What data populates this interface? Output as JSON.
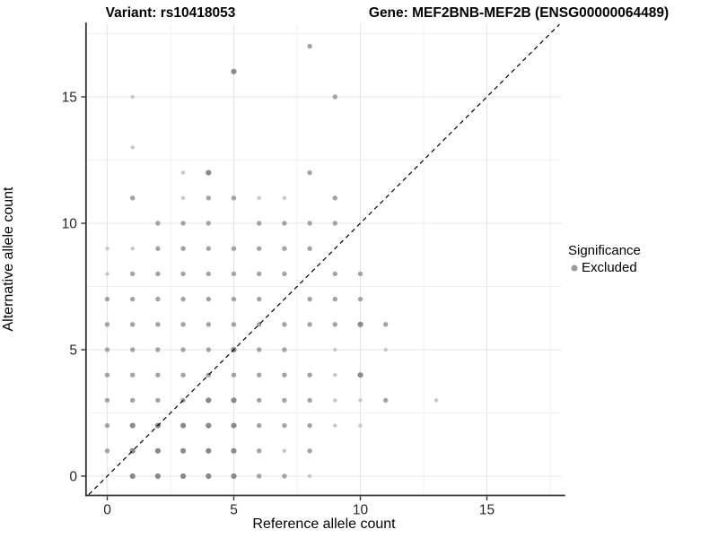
{
  "titles": {
    "variant": "Variant: rs10418053",
    "gene": "Gene: MEF2BNB-MEF2B (ENSG00000064489)"
  },
  "legend": {
    "title": "Significance",
    "entries": [
      {
        "label": "Excluded",
        "color": "#999999"
      }
    ],
    "position": "right"
  },
  "chart_data": {
    "type": "scatter",
    "title_left": "Variant: rs10418053",
    "title_right": "Gene: MEF2BNB-MEF2B (ENSG00000064489)",
    "xlabel": "Reference allele count",
    "ylabel": "Alternative allele count",
    "x_ticks": [
      0,
      5,
      10,
      15
    ],
    "y_ticks": [
      0,
      5,
      10,
      15
    ],
    "x_minor_ticks": [
      2.5,
      7.5,
      12.5,
      17.5
    ],
    "y_minor_ticks": [
      2.5,
      7.5,
      12.5,
      17.5
    ],
    "xlim": [
      -0.8,
      17.95
    ],
    "ylim": [
      -0.73,
      17.87
    ],
    "grid": "major+minor",
    "reference_line": {
      "equation": "y=x",
      "style": "dashed",
      "color": "#000000"
    },
    "legend_title": "Significance",
    "legend_entries": [
      {
        "label": "Excluded",
        "color": "#999999"
      }
    ],
    "point_classes": {
      "l": {
        "color": "#c7c7c7",
        "r": 2.2
      },
      "m": {
        "color": "#a3a3a3",
        "r": 2.7
      },
      "d": {
        "color": "#8a8a8a",
        "r": 3.1
      }
    },
    "points": [
      [
        1,
        0,
        "d"
      ],
      [
        2,
        0,
        "d"
      ],
      [
        3,
        0,
        "d"
      ],
      [
        4,
        0,
        "d"
      ],
      [
        5,
        0,
        "d"
      ],
      [
        6,
        0,
        "m"
      ],
      [
        7,
        0,
        "m"
      ],
      [
        8,
        0,
        "l"
      ],
      [
        0,
        1,
        "m"
      ],
      [
        1,
        1,
        "d"
      ],
      [
        2,
        1,
        "d"
      ],
      [
        3,
        1,
        "d"
      ],
      [
        4,
        1,
        "d"
      ],
      [
        5,
        1,
        "d"
      ],
      [
        6,
        1,
        "m"
      ],
      [
        7,
        1,
        "l"
      ],
      [
        8,
        1,
        "m"
      ],
      [
        0,
        2,
        "m"
      ],
      [
        1,
        2,
        "d"
      ],
      [
        2,
        2,
        "d"
      ],
      [
        3,
        2,
        "d"
      ],
      [
        4,
        2,
        "d"
      ],
      [
        5,
        2,
        "d"
      ],
      [
        6,
        2,
        "m"
      ],
      [
        7,
        2,
        "m"
      ],
      [
        8,
        2,
        "m"
      ],
      [
        9,
        2,
        "l"
      ],
      [
        10,
        2,
        "l"
      ],
      [
        0,
        3,
        "m"
      ],
      [
        1,
        3,
        "m"
      ],
      [
        2,
        3,
        "m"
      ],
      [
        3,
        3,
        "m"
      ],
      [
        4,
        3,
        "d"
      ],
      [
        5,
        3,
        "d"
      ],
      [
        6,
        3,
        "m"
      ],
      [
        7,
        3,
        "m"
      ],
      [
        8,
        3,
        "m"
      ],
      [
        9,
        3,
        "l"
      ],
      [
        10,
        3,
        "l"
      ],
      [
        11,
        3,
        "m"
      ],
      [
        13,
        3,
        "l"
      ],
      [
        0,
        4,
        "m"
      ],
      [
        1,
        4,
        "m"
      ],
      [
        2,
        4,
        "m"
      ],
      [
        3,
        4,
        "m"
      ],
      [
        4,
        4,
        "m"
      ],
      [
        5,
        4,
        "m"
      ],
      [
        6,
        4,
        "m"
      ],
      [
        7,
        4,
        "m"
      ],
      [
        8,
        4,
        "m"
      ],
      [
        9,
        4,
        "l"
      ],
      [
        10,
        4,
        "d"
      ],
      [
        0,
        5,
        "m"
      ],
      [
        1,
        5,
        "m"
      ],
      [
        2,
        5,
        "m"
      ],
      [
        3,
        5,
        "m"
      ],
      [
        4,
        5,
        "m"
      ],
      [
        5,
        5,
        "d"
      ],
      [
        6,
        5,
        "m"
      ],
      [
        7,
        5,
        "m"
      ],
      [
        9,
        5,
        "l"
      ],
      [
        11,
        5,
        "l"
      ],
      [
        0,
        6,
        "m"
      ],
      [
        1,
        6,
        "m"
      ],
      [
        2,
        6,
        "m"
      ],
      [
        3,
        6,
        "m"
      ],
      [
        4,
        6,
        "m"
      ],
      [
        5,
        6,
        "m"
      ],
      [
        6,
        6,
        "m"
      ],
      [
        7,
        6,
        "m"
      ],
      [
        8,
        6,
        "m"
      ],
      [
        9,
        6,
        "m"
      ],
      [
        10,
        6,
        "d"
      ],
      [
        11,
        6,
        "m"
      ],
      [
        0,
        7,
        "m"
      ],
      [
        1,
        7,
        "m"
      ],
      [
        2,
        7,
        "m"
      ],
      [
        3,
        7,
        "m"
      ],
      [
        4,
        7,
        "m"
      ],
      [
        5,
        7,
        "m"
      ],
      [
        6,
        7,
        "m"
      ],
      [
        8,
        7,
        "m"
      ],
      [
        9,
        7,
        "m"
      ],
      [
        10,
        7,
        "m"
      ],
      [
        0,
        8,
        "l"
      ],
      [
        1,
        8,
        "m"
      ],
      [
        2,
        8,
        "m"
      ],
      [
        3,
        8,
        "m"
      ],
      [
        4,
        8,
        "m"
      ],
      [
        5,
        8,
        "m"
      ],
      [
        6,
        8,
        "m"
      ],
      [
        7,
        8,
        "m"
      ],
      [
        9,
        8,
        "m"
      ],
      [
        10,
        8,
        "m"
      ],
      [
        0,
        9,
        "l"
      ],
      [
        1,
        9,
        "l"
      ],
      [
        2,
        9,
        "m"
      ],
      [
        3,
        9,
        "m"
      ],
      [
        4,
        9,
        "m"
      ],
      [
        5,
        9,
        "m"
      ],
      [
        6,
        9,
        "m"
      ],
      [
        7,
        9,
        "m"
      ],
      [
        8,
        9,
        "m"
      ],
      [
        2,
        10,
        "m"
      ],
      [
        3,
        10,
        "m"
      ],
      [
        4,
        10,
        "m"
      ],
      [
        6,
        10,
        "m"
      ],
      [
        7,
        10,
        "m"
      ],
      [
        8,
        10,
        "m"
      ],
      [
        9,
        10,
        "m"
      ],
      [
        1,
        11,
        "m"
      ],
      [
        3,
        11,
        "l"
      ],
      [
        4,
        11,
        "m"
      ],
      [
        5,
        11,
        "m"
      ],
      [
        6,
        11,
        "l"
      ],
      [
        7,
        11,
        "l"
      ],
      [
        9,
        11,
        "m"
      ],
      [
        3,
        12,
        "l"
      ],
      [
        4,
        12,
        "d"
      ],
      [
        8,
        12,
        "m"
      ],
      [
        1,
        13,
        "l"
      ],
      [
        1,
        15,
        "l"
      ],
      [
        9,
        15,
        "m"
      ],
      [
        5,
        16,
        "d"
      ],
      [
        8,
        17,
        "m"
      ]
    ]
  },
  "colors": {
    "axis_line": "#333333",
    "tick_text": "#262626",
    "grid_major": "#e4e4e4",
    "grid_minor": "#f1f1f1",
    "excluded_point": "#999999"
  }
}
